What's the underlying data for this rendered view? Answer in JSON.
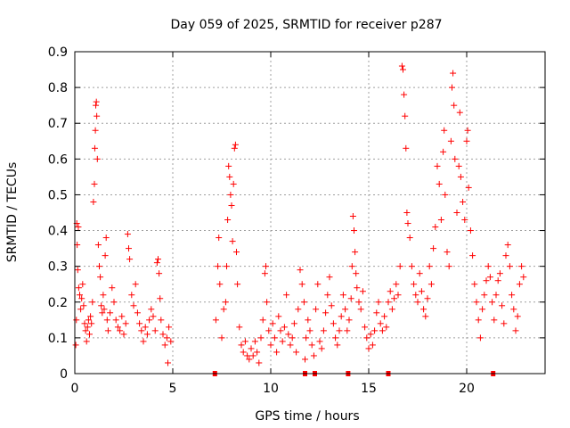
{
  "chart_data": {
    "type": "scatter",
    "title": "Day 059 of 2025, SRMTID for receiver p287",
    "xlabel": "GPS time / hours",
    "ylabel": "SRMTID / TECUs",
    "xlim": [
      0,
      24
    ],
    "ylim": [
      0,
      0.9
    ],
    "xticks": [
      0,
      5,
      10,
      15,
      20
    ],
    "xtick_labels": [
      "0",
      "5",
      "10",
      "15",
      "20"
    ],
    "yticks": [
      0,
      0.1,
      0.2,
      0.3,
      0.4,
      0.5,
      0.6,
      0.7,
      0.8,
      0.9
    ],
    "ytick_labels": [
      "0",
      "0.1",
      "0.2",
      "0.3",
      "0.4",
      "0.5",
      "0.6",
      "0.7",
      "0.8",
      "0.9"
    ],
    "grid": true,
    "marker": "plus",
    "color": "#ff0000",
    "baseline_markers_x": [
      7.15,
      11.75,
      12.25,
      13.95,
      16.0,
      21.35
    ],
    "series": [
      {
        "name": "SRMTID",
        "points": [
          [
            0.05,
            0.08
          ],
          [
            0.08,
            0.15
          ],
          [
            0.1,
            0.42
          ],
          [
            0.12,
            0.36
          ],
          [
            0.15,
            0.29
          ],
          [
            0.18,
            0.41
          ],
          [
            0.2,
            0.24
          ],
          [
            0.25,
            0.22
          ],
          [
            0.3,
            0.18
          ],
          [
            0.35,
            0.21
          ],
          [
            0.4,
            0.25
          ],
          [
            0.45,
            0.19
          ],
          [
            0.5,
            0.14
          ],
          [
            0.55,
            0.12
          ],
          [
            0.6,
            0.09
          ],
          [
            0.65,
            0.13
          ],
          [
            0.7,
            0.15
          ],
          [
            0.75,
            0.11
          ],
          [
            0.8,
            0.16
          ],
          [
            0.85,
            0.14
          ],
          [
            0.9,
            0.2
          ],
          [
            0.95,
            0.48
          ],
          [
            1.0,
            0.53
          ],
          [
            1.02,
            0.63
          ],
          [
            1.05,
            0.68
          ],
          [
            1.07,
            0.75
          ],
          [
            1.1,
            0.76
          ],
          [
            1.12,
            0.72
          ],
          [
            1.15,
            0.6
          ],
          [
            1.2,
            0.36
          ],
          [
            1.25,
            0.3
          ],
          [
            1.3,
            0.27
          ],
          [
            1.35,
            0.19
          ],
          [
            1.4,
            0.17
          ],
          [
            1.45,
            0.22
          ],
          [
            1.5,
            0.18
          ],
          [
            1.55,
            0.33
          ],
          [
            1.6,
            0.38
          ],
          [
            1.65,
            0.15
          ],
          [
            1.7,
            0.12
          ],
          [
            1.8,
            0.17
          ],
          [
            1.9,
            0.24
          ],
          [
            2.0,
            0.2
          ],
          [
            2.1,
            0.15
          ],
          [
            2.2,
            0.13
          ],
          [
            2.3,
            0.12
          ],
          [
            2.4,
            0.16
          ],
          [
            2.5,
            0.11
          ],
          [
            2.6,
            0.14
          ],
          [
            2.7,
            0.39
          ],
          [
            2.75,
            0.35
          ],
          [
            2.8,
            0.32
          ],
          [
            2.9,
            0.22
          ],
          [
            3.0,
            0.19
          ],
          [
            3.1,
            0.25
          ],
          [
            3.2,
            0.17
          ],
          [
            3.3,
            0.14
          ],
          [
            3.4,
            0.12
          ],
          [
            3.5,
            0.09
          ],
          [
            3.6,
            0.13
          ],
          [
            3.7,
            0.11
          ],
          [
            3.8,
            0.15
          ],
          [
            3.9,
            0.18
          ],
          [
            4.0,
            0.16
          ],
          [
            4.1,
            0.12
          ],
          [
            4.2,
            0.31
          ],
          [
            4.25,
            0.32
          ],
          [
            4.3,
            0.28
          ],
          [
            4.35,
            0.21
          ],
          [
            4.4,
            0.15
          ],
          [
            4.5,
            0.11
          ],
          [
            4.6,
            0.08
          ],
          [
            4.7,
            0.1
          ],
          [
            4.75,
            0.03
          ],
          [
            4.8,
            0.13
          ],
          [
            4.9,
            0.09
          ],
          [
            7.2,
            0.15
          ],
          [
            7.3,
            0.3
          ],
          [
            7.35,
            0.38
          ],
          [
            7.4,
            0.25
          ],
          [
            7.5,
            0.1
          ],
          [
            7.6,
            0.18
          ],
          [
            7.7,
            0.2
          ],
          [
            7.75,
            0.3
          ],
          [
            7.8,
            0.43
          ],
          [
            7.85,
            0.58
          ],
          [
            7.9,
            0.55
          ],
          [
            7.95,
            0.5
          ],
          [
            8.0,
            0.47
          ],
          [
            8.05,
            0.37
          ],
          [
            8.1,
            0.53
          ],
          [
            8.15,
            0.63
          ],
          [
            8.2,
            0.64
          ],
          [
            8.25,
            0.34
          ],
          [
            8.3,
            0.25
          ],
          [
            8.4,
            0.13
          ],
          [
            8.5,
            0.08
          ],
          [
            8.6,
            0.06
          ],
          [
            8.7,
            0.09
          ],
          [
            8.8,
            0.05
          ],
          [
            8.9,
            0.04
          ],
          [
            9.0,
            0.07
          ],
          [
            9.1,
            0.05
          ],
          [
            9.2,
            0.09
          ],
          [
            9.3,
            0.06
          ],
          [
            9.4,
            0.03
          ],
          [
            9.5,
            0.1
          ],
          [
            9.6,
            0.15
          ],
          [
            9.7,
            0.28
          ],
          [
            9.75,
            0.3
          ],
          [
            9.8,
            0.2
          ],
          [
            9.9,
            0.12
          ],
          [
            10.0,
            0.08
          ],
          [
            10.1,
            0.14
          ],
          [
            10.2,
            0.1
          ],
          [
            10.3,
            0.06
          ],
          [
            10.4,
            0.16
          ],
          [
            10.5,
            0.12
          ],
          [
            10.6,
            0.09
          ],
          [
            10.7,
            0.13
          ],
          [
            10.8,
            0.22
          ],
          [
            10.9,
            0.11
          ],
          [
            11.0,
            0.08
          ],
          [
            11.1,
            0.1
          ],
          [
            11.2,
            0.14
          ],
          [
            11.3,
            0.06
          ],
          [
            11.4,
            0.18
          ],
          [
            11.5,
            0.29
          ],
          [
            11.6,
            0.25
          ],
          [
            11.7,
            0.2
          ],
          [
            11.75,
            0.04
          ],
          [
            11.8,
            0.1
          ],
          [
            11.9,
            0.15
          ],
          [
            12.0,
            0.12
          ],
          [
            12.1,
            0.08
          ],
          [
            12.2,
            0.05
          ],
          [
            12.3,
            0.18
          ],
          [
            12.4,
            0.25
          ],
          [
            12.5,
            0.09
          ],
          [
            12.6,
            0.07
          ],
          [
            12.7,
            0.12
          ],
          [
            12.8,
            0.17
          ],
          [
            12.9,
            0.22
          ],
          [
            13.0,
            0.27
          ],
          [
            13.1,
            0.19
          ],
          [
            13.2,
            0.14
          ],
          [
            13.3,
            0.1
          ],
          [
            13.4,
            0.08
          ],
          [
            13.5,
            0.12
          ],
          [
            13.6,
            0.16
          ],
          [
            13.7,
            0.22
          ],
          [
            13.8,
            0.18
          ],
          [
            13.9,
            0.12
          ],
          [
            14.0,
            0.15
          ],
          [
            14.1,
            0.21
          ],
          [
            14.15,
            0.3
          ],
          [
            14.2,
            0.44
          ],
          [
            14.25,
            0.4
          ],
          [
            14.3,
            0.34
          ],
          [
            14.35,
            0.28
          ],
          [
            14.4,
            0.24
          ],
          [
            14.5,
            0.2
          ],
          [
            14.6,
            0.18
          ],
          [
            14.7,
            0.23
          ],
          [
            14.8,
            0.13
          ],
          [
            14.9,
            0.1
          ],
          [
            15.0,
            0.07
          ],
          [
            15.1,
            0.11
          ],
          [
            15.2,
            0.08
          ],
          [
            15.3,
            0.12
          ],
          [
            15.4,
            0.17
          ],
          [
            15.5,
            0.2
          ],
          [
            15.6,
            0.14
          ],
          [
            15.7,
            0.12
          ],
          [
            15.8,
            0.16
          ],
          [
            15.9,
            0.13
          ],
          [
            16.0,
            0.2
          ],
          [
            16.1,
            0.23
          ],
          [
            16.2,
            0.18
          ],
          [
            16.3,
            0.21
          ],
          [
            16.4,
            0.25
          ],
          [
            16.5,
            0.22
          ],
          [
            16.6,
            0.3
          ],
          [
            16.7,
            0.86
          ],
          [
            16.75,
            0.85
          ],
          [
            16.8,
            0.78
          ],
          [
            16.85,
            0.72
          ],
          [
            16.9,
            0.63
          ],
          [
            16.95,
            0.45
          ],
          [
            17.0,
            0.42
          ],
          [
            17.1,
            0.38
          ],
          [
            17.2,
            0.3
          ],
          [
            17.3,
            0.25
          ],
          [
            17.4,
            0.22
          ],
          [
            17.5,
            0.2
          ],
          [
            17.6,
            0.28
          ],
          [
            17.7,
            0.23
          ],
          [
            17.8,
            0.18
          ],
          [
            17.9,
            0.16
          ],
          [
            18.0,
            0.21
          ],
          [
            18.1,
            0.3
          ],
          [
            18.2,
            0.25
          ],
          [
            18.3,
            0.35
          ],
          [
            18.4,
            0.41
          ],
          [
            18.5,
            0.58
          ],
          [
            18.6,
            0.53
          ],
          [
            18.7,
            0.43
          ],
          [
            18.8,
            0.62
          ],
          [
            18.85,
            0.68
          ],
          [
            18.9,
            0.5
          ],
          [
            19.0,
            0.34
          ],
          [
            19.1,
            0.3
          ],
          [
            19.2,
            0.65
          ],
          [
            19.25,
            0.8
          ],
          [
            19.3,
            0.84
          ],
          [
            19.35,
            0.75
          ],
          [
            19.4,
            0.6
          ],
          [
            19.5,
            0.45
          ],
          [
            19.6,
            0.58
          ],
          [
            19.65,
            0.73
          ],
          [
            19.7,
            0.55
          ],
          [
            19.8,
            0.48
          ],
          [
            19.9,
            0.43
          ],
          [
            20.0,
            0.65
          ],
          [
            20.05,
            0.68
          ],
          [
            20.1,
            0.52
          ],
          [
            20.2,
            0.4
          ],
          [
            20.3,
            0.33
          ],
          [
            20.4,
            0.25
          ],
          [
            20.5,
            0.2
          ],
          [
            20.6,
            0.15
          ],
          [
            20.7,
            0.1
          ],
          [
            20.8,
            0.18
          ],
          [
            20.9,
            0.22
          ],
          [
            21.0,
            0.26
          ],
          [
            21.1,
            0.3
          ],
          [
            21.2,
            0.27
          ],
          [
            21.3,
            0.2
          ],
          [
            21.4,
            0.15
          ],
          [
            21.5,
            0.22
          ],
          [
            21.6,
            0.26
          ],
          [
            21.7,
            0.28
          ],
          [
            21.8,
            0.19
          ],
          [
            21.9,
            0.14
          ],
          [
            22.0,
            0.33
          ],
          [
            22.1,
            0.36
          ],
          [
            22.2,
            0.3
          ],
          [
            22.3,
            0.22
          ],
          [
            22.4,
            0.18
          ],
          [
            22.5,
            0.12
          ],
          [
            22.6,
            0.16
          ],
          [
            22.7,
            0.25
          ],
          [
            22.8,
            0.3
          ],
          [
            22.9,
            0.27
          ]
        ]
      }
    ]
  }
}
